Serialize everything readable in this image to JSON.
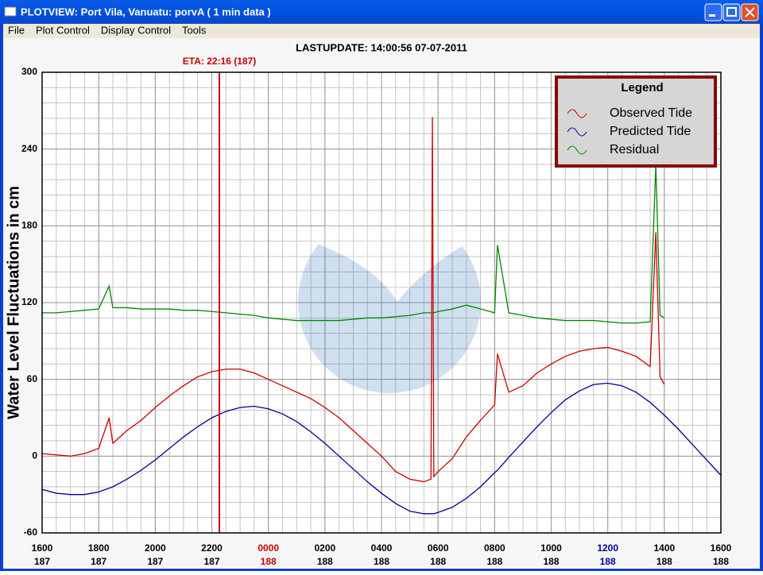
{
  "window": {
    "title": "PLOTVIEW:   Port Vila, Vanuatu: porvA (  1 min data )"
  },
  "menu": [
    "File",
    "Plot Control",
    "Display Control",
    "Tools"
  ],
  "chart_data": {
    "type": "line",
    "title": "LASTUPDATE: 14:00:56  07-07-2011",
    "ylabel": "Water Level Fluctuations in cm",
    "legend_title": "Legend",
    "legend": "upper right",
    "grid": true,
    "x_minor_step": 0.5,
    "y_minor_step": 12,
    "xlim": [
      0,
      24
    ],
    "ylim": [
      -60,
      300
    ],
    "yticks": [
      -60,
      0,
      60,
      120,
      180,
      240,
      300
    ],
    "xticks": [
      {
        "value": 0,
        "label": "1600"
      },
      {
        "value": 2,
        "label": "1800"
      },
      {
        "value": 4,
        "label": "2000"
      },
      {
        "value": 6,
        "label": "2200"
      },
      {
        "value": 8,
        "label": "0000"
      },
      {
        "value": 10,
        "label": "0200"
      },
      {
        "value": 12,
        "label": "0400"
      },
      {
        "value": 14,
        "label": "0600"
      },
      {
        "value": 16,
        "label": "0800"
      },
      {
        "value": 18,
        "label": "1000"
      },
      {
        "value": 20,
        "label": "1200"
      },
      {
        "value": 22,
        "label": "1400"
      },
      {
        "value": 24,
        "label": "1600"
      }
    ],
    "xtick_days": [
      "187",
      "187",
      "187",
      "187",
      "188",
      "188",
      "188",
      "188",
      "188",
      "188",
      "188",
      "188",
      "188"
    ],
    "xtick_colors": [
      "#000000",
      "#000000",
      "#000000",
      "#000000",
      "#cc0000",
      "#000000",
      "#000000",
      "#000000",
      "#000000",
      "#000000",
      "#000099",
      "#000000",
      "#000000"
    ],
    "eta": {
      "x": 6.267,
      "label": "ETA: 22:16 (187)",
      "color": "#cc0000"
    },
    "x": [
      0,
      0.5,
      1,
      1.5,
      2,
      2.37,
      2.5,
      3,
      3.5,
      4,
      4.5,
      5,
      5.5,
      6,
      6.5,
      7,
      7.5,
      8,
      8.5,
      9,
      9.5,
      10,
      10.5,
      11,
      11.5,
      12,
      12.5,
      13,
      13.5,
      13.75,
      13.8,
      13.85,
      14,
      14.5,
      15,
      15.5,
      16,
      16.1,
      16.5,
      17,
      17.5,
      18,
      18.5,
      19,
      19.5,
      20,
      20.5,
      21,
      21.5,
      21.7,
      21.85,
      22,
      22.5,
      23,
      23.5,
      24
    ],
    "series": [
      {
        "name": "Observed Tide",
        "color": "#cc0000",
        "values": [
          2,
          1,
          0,
          2,
          6,
          30,
          10,
          20,
          28,
          38,
          47,
          55,
          62,
          66,
          68,
          68,
          65,
          60,
          55,
          50,
          45,
          38,
          30,
          20,
          10,
          0,
          -12,
          -18,
          -20,
          -18,
          265,
          -16,
          -12,
          -2,
          15,
          28,
          40,
          80,
          50,
          55,
          65,
          72,
          78,
          82,
          84,
          85,
          82,
          78,
          70,
          175,
          62,
          56,
          null,
          null,
          null,
          null
        ]
      },
      {
        "name": "Predicted Tide",
        "color": "#000099",
        "values": [
          -26,
          -29,
          -30,
          -30,
          -28,
          -25,
          -24,
          -18,
          -11,
          -3,
          6,
          15,
          23,
          30,
          35,
          38,
          39,
          37,
          33,
          27,
          19,
          10,
          0,
          -10,
          -20,
          -29,
          -37,
          -43,
          -45,
          -45,
          -45,
          -45,
          -44,
          -40,
          -33,
          -24,
          -13,
          -11,
          -1,
          11,
          23,
          34,
          44,
          51,
          56,
          57,
          55,
          50,
          42,
          38,
          35,
          32,
          21,
          9,
          -3,
          -15
        ]
      },
      {
        "name": "Residual",
        "color": "#008800",
        "values": [
          112,
          112,
          113,
          114,
          115,
          133,
          116,
          116,
          115,
          115,
          115,
          114,
          114,
          113,
          112,
          111,
          110,
          108,
          107,
          106,
          106,
          106,
          106,
          107,
          108,
          108,
          109,
          110,
          112,
          112,
          112,
          112,
          113,
          115,
          118,
          115,
          112,
          165,
          112,
          110,
          108,
          107,
          106,
          106,
          106,
          105,
          104,
          104,
          105,
          228,
          110,
          108,
          null,
          null,
          null,
          null
        ]
      }
    ]
  }
}
